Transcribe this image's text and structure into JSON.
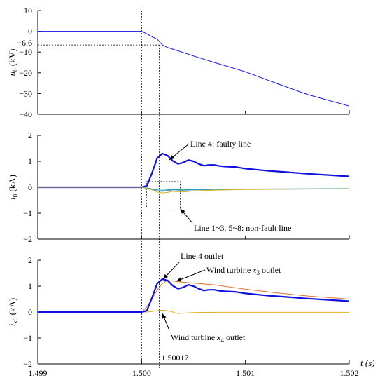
{
  "figure": {
    "xlabel": "t (s)",
    "colors": {
      "line4": "#1010e0",
      "nonfault_blue": "#4a8ad8",
      "nonfault_teal": "#20a0a0",
      "nonfault_yellow": "#d8b020",
      "wind_x3": "#e0702a",
      "wind_x4": "#e0b020",
      "guide": "#000000"
    },
    "marker_times": [
      1.5,
      1.50017
    ]
  },
  "chart_data": [
    {
      "type": "line",
      "ylabel_main": "u",
      "ylabel_sub": "0",
      "ylabel_unit": " (kV)",
      "xlim": [
        1.499,
        1.502
      ],
      "ylim": [
        -40,
        10
      ],
      "yticks": [
        10,
        0,
        -10,
        -20,
        -30,
        -40
      ],
      "ytick_labels": [
        "10",
        "0",
        "−10",
        "−20",
        "−30",
        "−40"
      ],
      "extra_ytick": {
        "value": -6.6,
        "label": "−6.6"
      },
      "series": [
        {
          "key": "u0",
          "color_key": "line4",
          "width": 1,
          "x": [
            1.499,
            1.5,
            1.50005,
            1.5001,
            1.50015,
            1.5002,
            1.50025,
            1.5003,
            1.5004,
            1.5005,
            1.5007,
            1.501,
            1.5013,
            1.5016,
            1.502
          ],
          "y": [
            0,
            0,
            -1.2,
            -2.6,
            -3.8,
            -6.6,
            -7.8,
            -8.6,
            -10.2,
            -11.9,
            -15.0,
            -19.5,
            -25.1,
            -30.5,
            -36.0
          ]
        }
      ]
    },
    {
      "type": "line",
      "ylabel_main": "i",
      "ylabel_sub": "0",
      "ylabel_unit": " (kA)",
      "xlim": [
        1.499,
        1.502
      ],
      "ylim": [
        -2,
        2
      ],
      "yticks": [
        2,
        1,
        0,
        -1,
        -2
      ],
      "ytick_labels": [
        "2",
        "1",
        "0",
        "−1",
        "−2"
      ],
      "annotations": [
        {
          "text": "Line 4: faulty line"
        },
        {
          "text": "Line 1~3, 5~8: non-fault line"
        }
      ],
      "series": [
        {
          "key": "line4",
          "color_key": "line4",
          "width": 2.2,
          "x": [
            1.499,
            1.5,
            1.50005,
            1.5001,
            1.50015,
            1.5002,
            1.50025,
            1.5003,
            1.50035,
            1.5004,
            1.50045,
            1.5005,
            1.50055,
            1.5006,
            1.50065,
            1.5007,
            1.50075,
            1.5008,
            1.5009,
            1.501,
            1.5012,
            1.5014,
            1.5016,
            1.5018,
            1.502
          ],
          "y": [
            0,
            0,
            0.05,
            0.55,
            1.12,
            1.3,
            1.22,
            1.02,
            0.9,
            0.95,
            1.05,
            1.0,
            0.9,
            0.83,
            0.86,
            0.86,
            0.82,
            0.8,
            0.78,
            0.72,
            0.64,
            0.58,
            0.52,
            0.47,
            0.42
          ]
        },
        {
          "key": "nf_blue",
          "color_key": "nonfault_blue",
          "width": 1,
          "x": [
            1.499,
            1.5,
            1.5001,
            1.50015,
            1.5002,
            1.50025,
            1.5003,
            1.5004,
            1.5005,
            1.5007,
            1.501,
            1.5015,
            1.502
          ],
          "y": [
            0,
            0,
            -0.08,
            -0.14,
            -0.16,
            -0.13,
            -0.1,
            -0.12,
            -0.1,
            -0.09,
            -0.08,
            -0.07,
            -0.06
          ]
        },
        {
          "key": "nf_teal",
          "color_key": "nonfault_teal",
          "width": 1,
          "x": [
            1.499,
            1.5,
            1.5001,
            1.50015,
            1.5002,
            1.50025,
            1.5003,
            1.5004,
            1.5005,
            1.5007,
            1.501,
            1.5015,
            1.502
          ],
          "y": [
            0,
            0,
            -0.06,
            -0.1,
            -0.12,
            -0.1,
            -0.08,
            -0.1,
            -0.09,
            -0.08,
            -0.07,
            -0.06,
            -0.05
          ]
        },
        {
          "key": "nf_yellow",
          "color_key": "nonfault_yellow",
          "width": 1,
          "x": [
            1.499,
            1.5,
            1.5001,
            1.50015,
            1.5002,
            1.50025,
            1.5003,
            1.5004,
            1.5005,
            1.5007,
            1.501,
            1.5015,
            1.502
          ],
          "y": [
            0,
            0,
            -0.1,
            -0.18,
            -0.22,
            -0.2,
            -0.16,
            -0.18,
            -0.14,
            -0.11,
            -0.09,
            -0.07,
            -0.06
          ]
        }
      ]
    },
    {
      "type": "line",
      "ylabel_main": "i",
      "ylabel_sub": "x0",
      "ylabel_unit": " (kA)",
      "xlim": [
        1.499,
        1.502
      ],
      "ylim": [
        -2,
        2
      ],
      "yticks": [
        2,
        1,
        0,
        -1,
        -2
      ],
      "ytick_labels": [
        "2",
        "1",
        "0",
        "−1",
        "−2"
      ],
      "xticks": [
        1.499,
        1.5,
        1.501,
        1.502
      ],
      "xtick_labels": [
        "1.499",
        "1.500",
        "1.501",
        "1.502"
      ],
      "extra_xtick_label": "1.50017",
      "annotations": [
        {
          "text": "Line 4 outlet"
        },
        {
          "text": "Wind turbine ",
          "sub": "x",
          "sub_sub": "3",
          "tail": " outlet"
        },
        {
          "text": "Wind turbine ",
          "sub": "x",
          "sub_sub": "4",
          "tail": " outlet"
        }
      ],
      "series": [
        {
          "key": "wind_x3",
          "color_key": "wind_x3",
          "width": 1,
          "x": [
            1.499,
            1.5,
            1.50005,
            1.5001,
            1.50015,
            1.5002,
            1.50025,
            1.5003,
            1.5004,
            1.5005,
            1.5007,
            1.501,
            1.5013,
            1.5016,
            1.502
          ],
          "y": [
            0,
            0,
            0.2,
            0.5,
            0.85,
            1.1,
            1.22,
            1.2,
            1.15,
            1.12,
            1.05,
            0.88,
            0.74,
            0.62,
            0.5
          ]
        },
        {
          "key": "wind_x4",
          "color_key": "wind_x4",
          "width": 1,
          "x": [
            1.499,
            1.5,
            1.50005,
            1.5001,
            1.50015,
            1.5002,
            1.50025,
            1.5003,
            1.50035,
            1.5004,
            1.5005,
            1.5007,
            1.501,
            1.5015,
            1.502
          ],
          "y": [
            0,
            0,
            0.0,
            0.02,
            0.06,
            0.07,
            0.05,
            0.0,
            -0.06,
            -0.04,
            -0.02,
            -0.01,
            -0.01,
            -0.01,
            -0.01
          ]
        },
        {
          "key": "line4_outlet",
          "color_key": "line4",
          "width": 2.2,
          "x": [
            1.499,
            1.5,
            1.50005,
            1.5001,
            1.50015,
            1.5002,
            1.50025,
            1.5003,
            1.50035,
            1.5004,
            1.50045,
            1.5005,
            1.50055,
            1.5006,
            1.50065,
            1.5007,
            1.50075,
            1.5008,
            1.5009,
            1.501,
            1.5012,
            1.5014,
            1.5016,
            1.5018,
            1.502
          ],
          "y": [
            0,
            0,
            0.05,
            0.55,
            1.1,
            1.27,
            1.22,
            1.02,
            0.9,
            0.95,
            1.05,
            1.0,
            0.9,
            0.83,
            0.86,
            0.86,
            0.82,
            0.8,
            0.78,
            0.72,
            0.64,
            0.58,
            0.52,
            0.47,
            0.42
          ]
        }
      ]
    }
  ]
}
